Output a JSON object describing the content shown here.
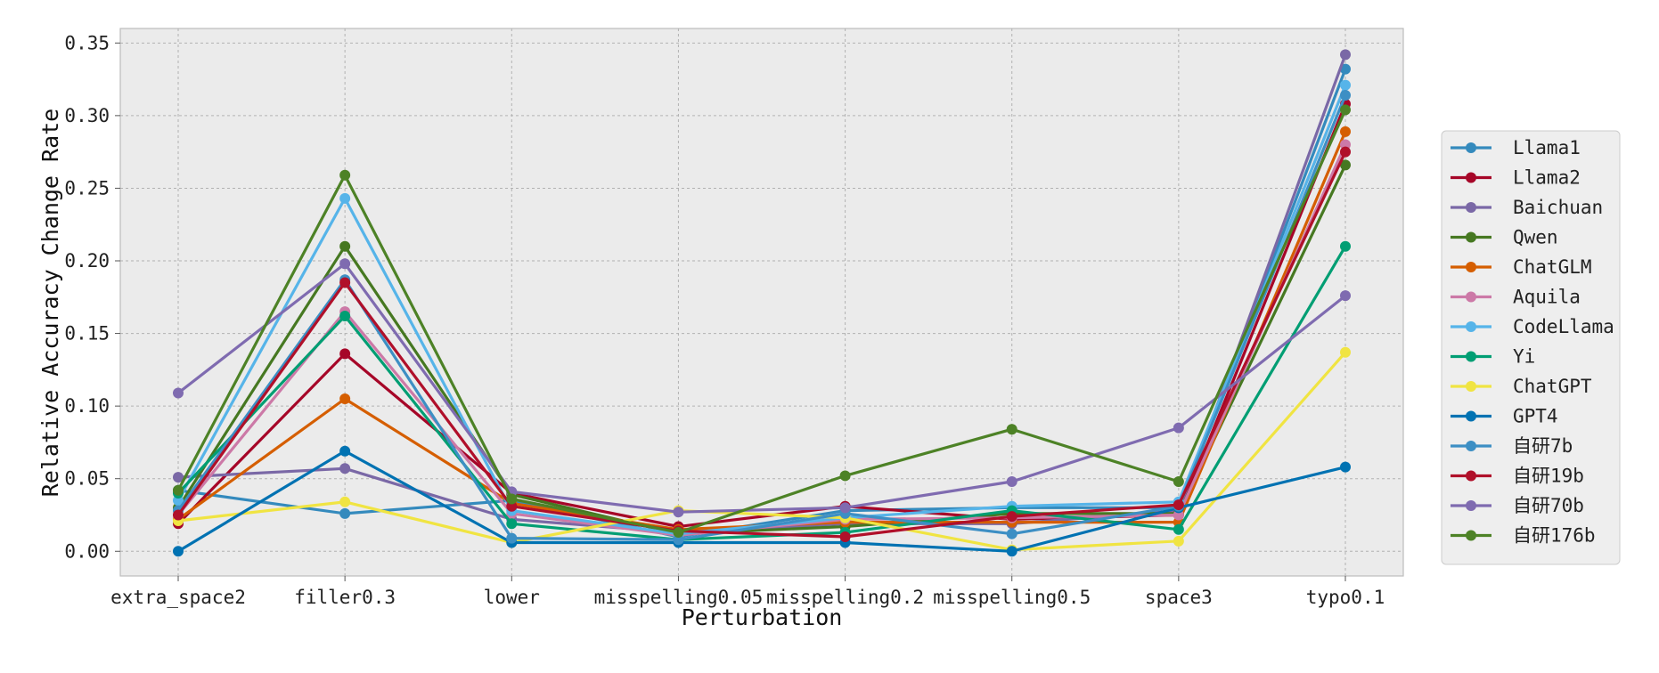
{
  "chart_data": {
    "type": "line",
    "title": "",
    "xlabel": "Perturbation",
    "ylabel": "Relative Accuracy Change Rate",
    "categories": [
      "extra_space2",
      "filler0.3",
      "lower",
      "misspelling0.05",
      "misspelling0.2",
      "misspelling0.5",
      "space3",
      "typo0.1"
    ],
    "ylim": [
      -0.017,
      0.36
    ],
    "yticks": [
      "0.00",
      "0.05",
      "0.10",
      "0.15",
      "0.20",
      "0.25",
      "0.30",
      "0.35"
    ],
    "grid": true,
    "legend_position": "right",
    "series": [
      {
        "name": "Llama1",
        "color": "#348ABD",
        "values": [
          0.042,
          0.026,
          0.035,
          0.01,
          0.028,
          0.03,
          0.03,
          0.332
        ]
      },
      {
        "name": "Llama2",
        "color": "#A60628",
        "values": [
          0.019,
          0.136,
          0.04,
          0.017,
          0.031,
          0.022,
          0.025,
          0.308
        ]
      },
      {
        "name": "Baichuan",
        "color": "#7A68A6",
        "values": [
          0.051,
          0.057,
          0.022,
          0.013,
          0.019,
          0.019,
          0.028,
          0.342
        ]
      },
      {
        "name": "Qwen",
        "color": "#467821",
        "values": [
          0.03,
          0.21,
          0.039,
          0.012,
          0.017,
          0.026,
          0.026,
          0.266
        ]
      },
      {
        "name": "ChatGLM",
        "color": "#D55E00",
        "values": [
          0.022,
          0.105,
          0.033,
          0.015,
          0.02,
          0.02,
          0.02,
          0.289
        ]
      },
      {
        "name": "Aquila",
        "color": "#CC79A7",
        "values": [
          0.025,
          0.165,
          0.026,
          0.011,
          0.022,
          0.023,
          0.025,
          0.28
        ]
      },
      {
        "name": "CodeLlama",
        "color": "#56B4E9",
        "values": [
          0.035,
          0.243,
          0.028,
          0.012,
          0.023,
          0.031,
          0.034,
          0.321
        ]
      },
      {
        "name": "Yi",
        "color": "#009E73",
        "values": [
          0.04,
          0.162,
          0.019,
          0.008,
          0.013,
          0.028,
          0.015,
          0.21
        ]
      },
      {
        "name": "ChatGPT",
        "color": "#F0E442",
        "values": [
          0.021,
          0.034,
          0.006,
          0.028,
          0.023,
          0.001,
          0.007,
          0.137
        ]
      },
      {
        "name": "GPT4",
        "color": "#0072B2",
        "values": [
          0.0,
          0.069,
          0.006,
          0.006,
          0.006,
          0.0,
          0.03,
          0.058
        ]
      },
      {
        "name": "自研7b",
        "color": "#3D8FC4",
        "values": [
          0.028,
          0.187,
          0.009,
          0.008,
          0.026,
          0.012,
          0.031,
          0.314
        ]
      },
      {
        "name": "自研19b",
        "color": "#B0102A",
        "values": [
          0.025,
          0.185,
          0.031,
          0.014,
          0.01,
          0.024,
          0.032,
          0.275
        ]
      },
      {
        "name": "自研70b",
        "color": "#7F6BB0",
        "values": [
          0.109,
          0.198,
          0.041,
          0.027,
          0.03,
          0.048,
          0.085,
          0.176
        ]
      },
      {
        "name": "自研176b",
        "color": "#4D8226",
        "values": [
          0.042,
          0.259,
          0.036,
          0.013,
          0.052,
          0.084,
          0.048,
          0.304
        ]
      }
    ]
  }
}
